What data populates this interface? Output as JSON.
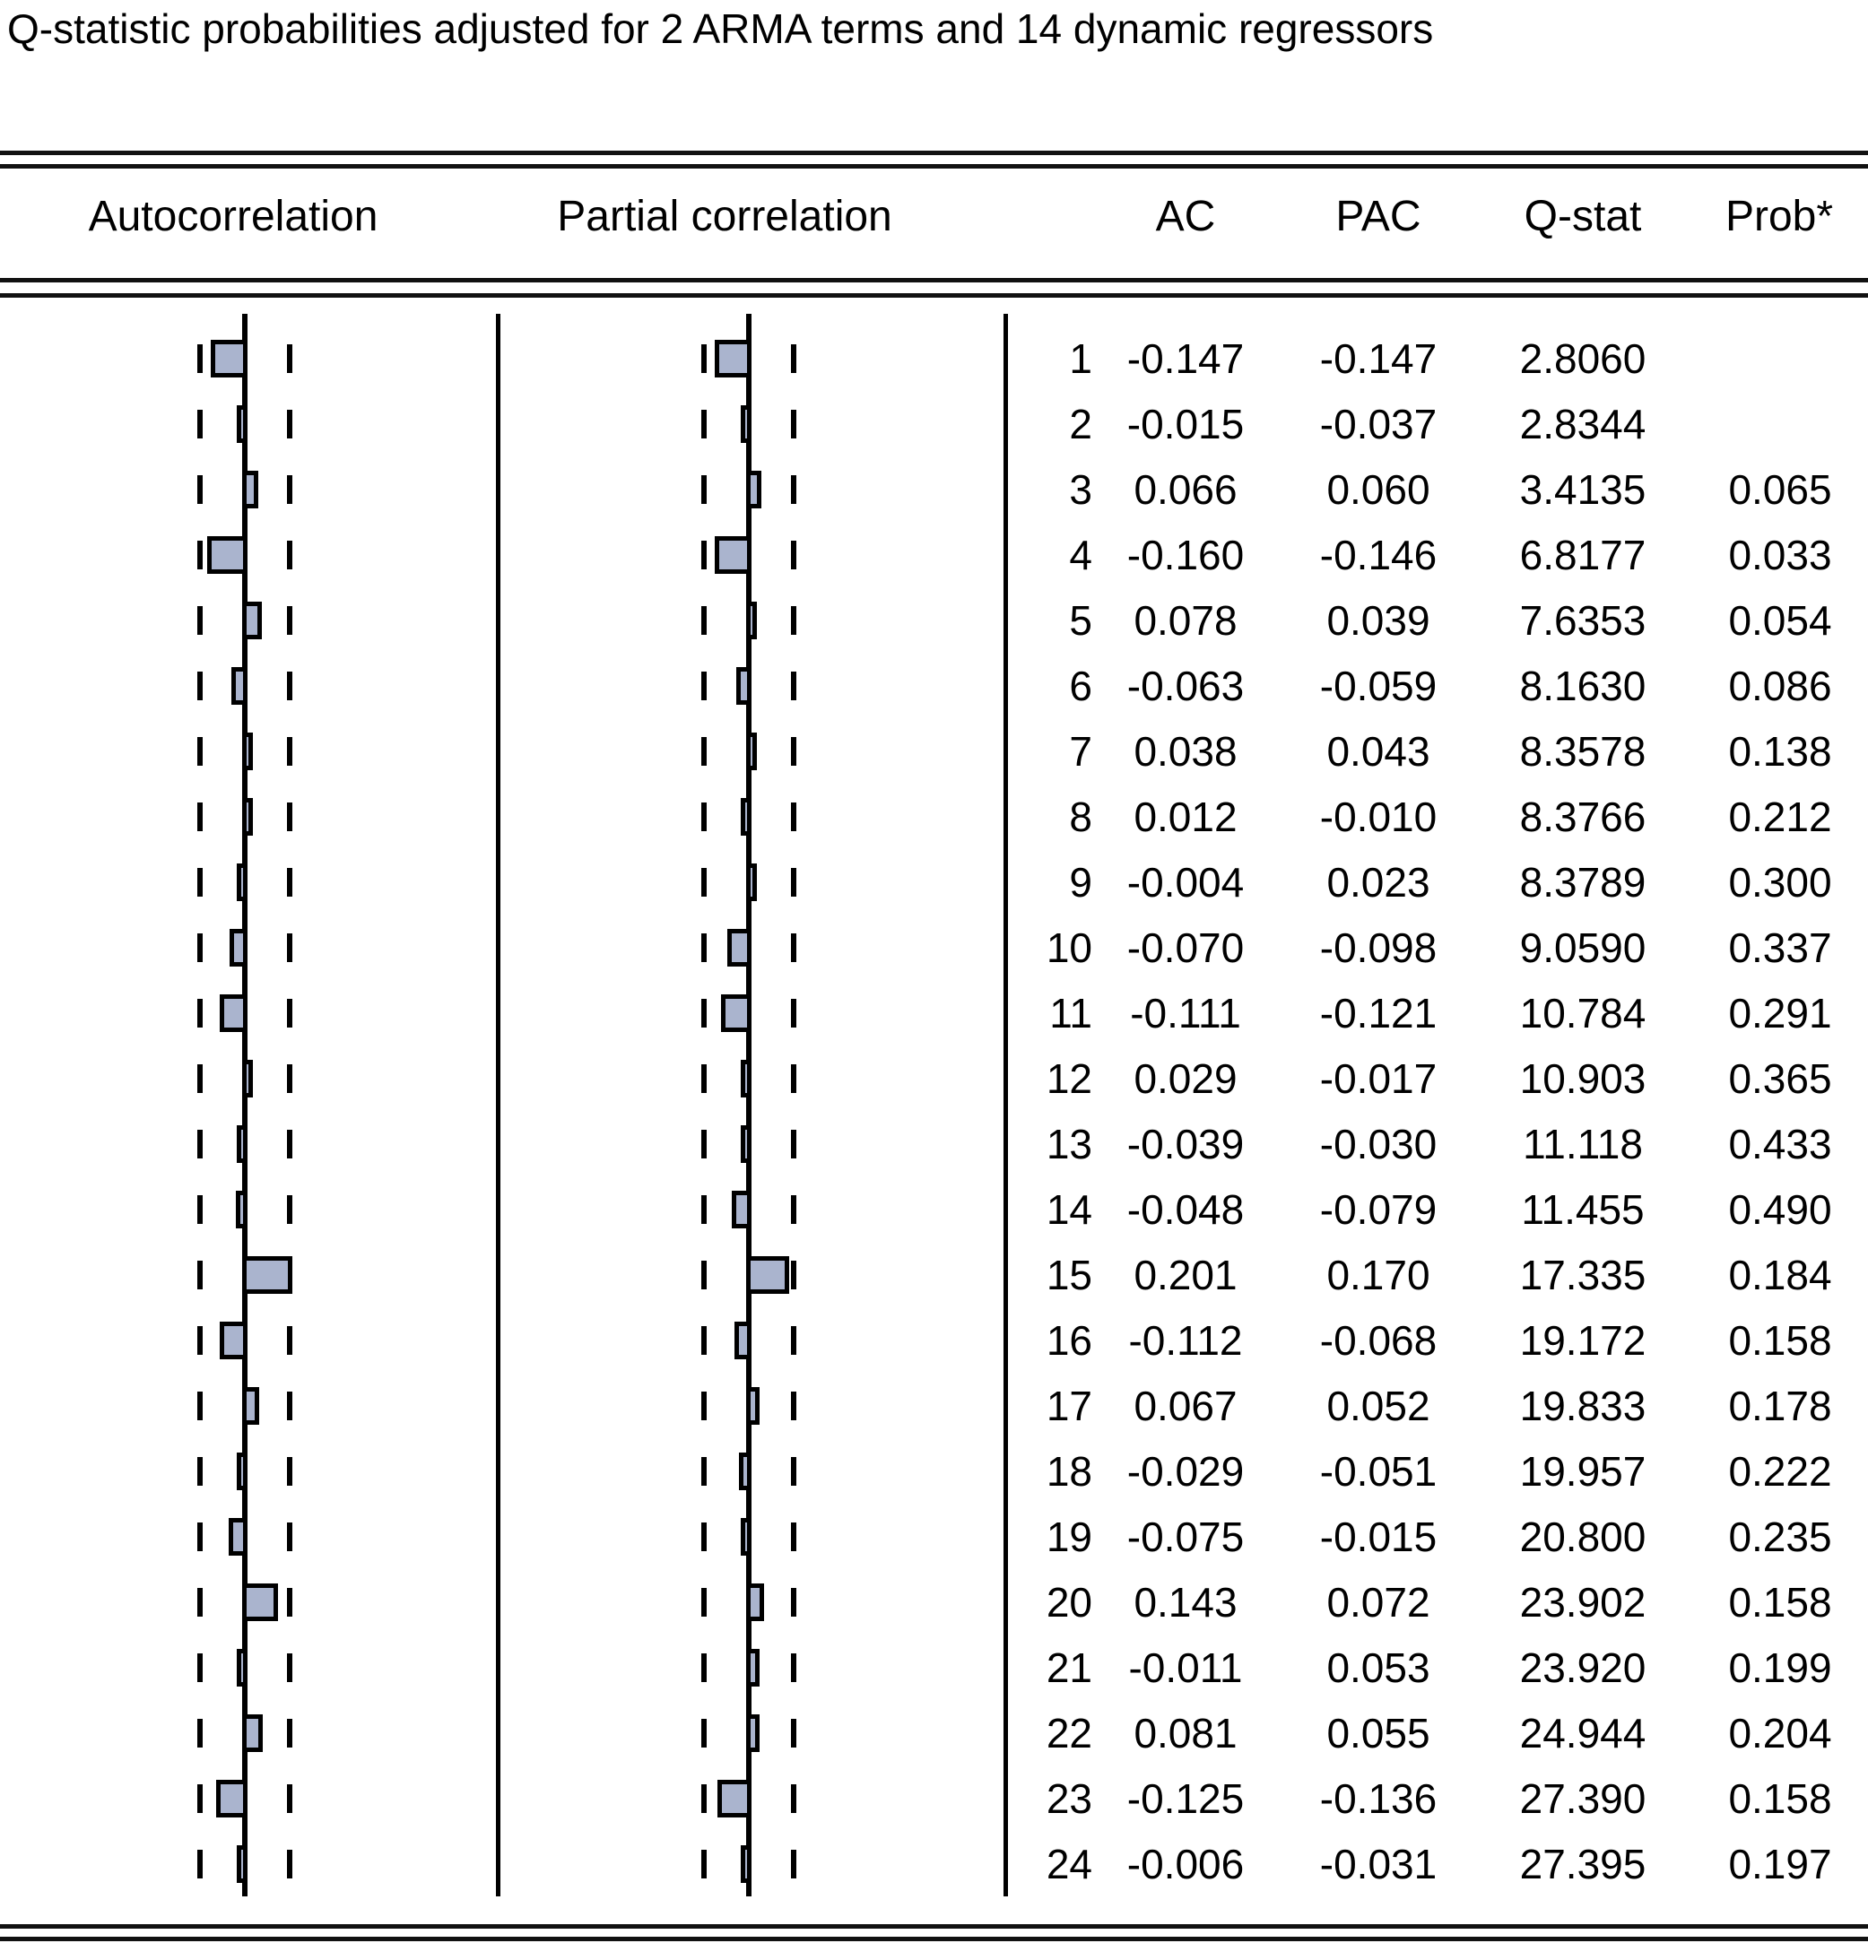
{
  "title": "Q-statistic probabilities adjusted for 2 ARMA terms and 14 dynamic regressors",
  "header": {
    "autocorrelation": "Autocorrelation",
    "partial_correlation": "Partial correlation",
    "ac": "AC",
    "pac": "PAC",
    "qstat": "Q-stat",
    "prob": "Prob*"
  },
  "chart_data": {
    "type": "bar",
    "orientation": "horizontal",
    "panels": [
      "Autocorrelation",
      "Partial correlation"
    ],
    "legend_position": "none",
    "grid": "dashed confidence band lines on both sides of zero axis",
    "bar_fill_color": "#aab4ce",
    "bar_border_color": "#000000",
    "columns": [
      "lag",
      "AC",
      "PAC",
      "Q-stat",
      "Prob*"
    ],
    "rows": [
      {
        "lag": "1",
        "ac": "-0.147",
        "pac": "-0.147",
        "qstat": "2.8060",
        "prob": ""
      },
      {
        "lag": "2",
        "ac": "-0.015",
        "pac": "-0.037",
        "qstat": "2.8344",
        "prob": ""
      },
      {
        "lag": "3",
        "ac": "0.066",
        "pac": "0.060",
        "qstat": "3.4135",
        "prob": "0.065"
      },
      {
        "lag": "4",
        "ac": "-0.160",
        "pac": "-0.146",
        "qstat": "6.8177",
        "prob": "0.033"
      },
      {
        "lag": "5",
        "ac": "0.078",
        "pac": "0.039",
        "qstat": "7.6353",
        "prob": "0.054"
      },
      {
        "lag": "6",
        "ac": "-0.063",
        "pac": "-0.059",
        "qstat": "8.1630",
        "prob": "0.086"
      },
      {
        "lag": "7",
        "ac": "0.038",
        "pac": "0.043",
        "qstat": "8.3578",
        "prob": "0.138"
      },
      {
        "lag": "8",
        "ac": "0.012",
        "pac": "-0.010",
        "qstat": "8.3766",
        "prob": "0.212"
      },
      {
        "lag": "9",
        "ac": "-0.004",
        "pac": "0.023",
        "qstat": "8.3789",
        "prob": "0.300"
      },
      {
        "lag": "10",
        "ac": "-0.070",
        "pac": "-0.098",
        "qstat": "9.0590",
        "prob": "0.337"
      },
      {
        "lag": "11",
        "ac": "-0.111",
        "pac": "-0.121",
        "qstat": "10.784",
        "prob": "0.291"
      },
      {
        "lag": "12",
        "ac": "0.029",
        "pac": "-0.017",
        "qstat": "10.903",
        "prob": "0.365"
      },
      {
        "lag": "13",
        "ac": "-0.039",
        "pac": "-0.030",
        "qstat": "11.118",
        "prob": "0.433"
      },
      {
        "lag": "14",
        "ac": "-0.048",
        "pac": "-0.079",
        "qstat": "11.455",
        "prob": "0.490"
      },
      {
        "lag": "15",
        "ac": "0.201",
        "pac": "0.170",
        "qstat": "17.335",
        "prob": "0.184"
      },
      {
        "lag": "16",
        "ac": "-0.112",
        "pac": "-0.068",
        "qstat": "19.172",
        "prob": "0.158"
      },
      {
        "lag": "17",
        "ac": "0.067",
        "pac": "0.052",
        "qstat": "19.833",
        "prob": "0.178"
      },
      {
        "lag": "18",
        "ac": "-0.029",
        "pac": "-0.051",
        "qstat": "19.957",
        "prob": "0.222"
      },
      {
        "lag": "19",
        "ac": "-0.075",
        "pac": "-0.015",
        "qstat": "20.800",
        "prob": "0.235"
      },
      {
        "lag": "20",
        "ac": "0.143",
        "pac": "0.072",
        "qstat": "23.902",
        "prob": "0.158"
      },
      {
        "lag": "21",
        "ac": "-0.011",
        "pac": "0.053",
        "qstat": "23.920",
        "prob": "0.199"
      },
      {
        "lag": "22",
        "ac": "0.081",
        "pac": "0.055",
        "qstat": "24.944",
        "prob": "0.204"
      },
      {
        "lag": "23",
        "ac": "-0.125",
        "pac": "-0.136",
        "qstat": "27.390",
        "prob": "0.158"
      },
      {
        "lag": "24",
        "ac": "-0.006",
        "pac": "-0.031",
        "qstat": "27.395",
        "prob": "0.197"
      }
    ]
  }
}
